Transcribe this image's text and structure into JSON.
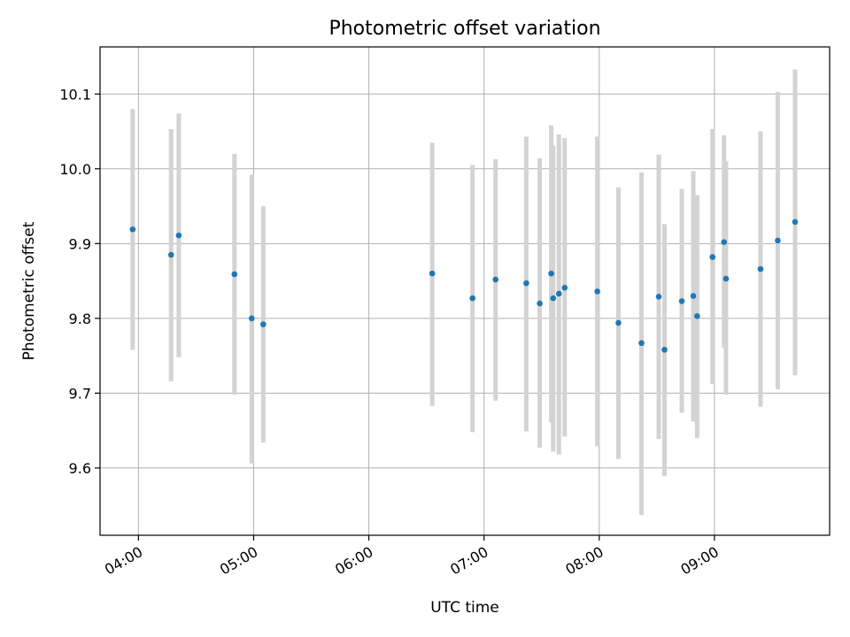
{
  "chart_data": {
    "type": "scatter",
    "title": "Photometric offset variation",
    "xlabel": "UTC time",
    "ylabel": "Photometric offset",
    "x_unit": "UTC time (HH:MM)",
    "xlim": [
      "03:40",
      "10:00"
    ],
    "ylim": [
      9.51,
      10.163
    ],
    "x_ticks": [
      "04:00",
      "05:00",
      "06:00",
      "07:00",
      "08:00",
      "09:00"
    ],
    "y_ticks": [
      9.6,
      9.7,
      9.8,
      9.9,
      10.0,
      10.1
    ],
    "grid": true,
    "colors": {
      "point": "#1f77b4",
      "errorbar": "#d3d3d3",
      "grid": "#b0b0b0"
    },
    "points": [
      {
        "x": "03:57",
        "y": 9.919,
        "ylo": 9.758,
        "yhi": 10.08
      },
      {
        "x": "04:17",
        "y": 9.885,
        "ylo": 9.716,
        "yhi": 10.053
      },
      {
        "x": "04:21",
        "y": 9.911,
        "ylo": 9.748,
        "yhi": 10.074
      },
      {
        "x": "04:50",
        "y": 9.859,
        "ylo": 9.698,
        "yhi": 10.02
      },
      {
        "x": "04:59",
        "y": 9.8,
        "ylo": 9.606,
        "yhi": 9.992
      },
      {
        "x": "05:05",
        "y": 9.792,
        "ylo": 9.634,
        "yhi": 9.95
      },
      {
        "x": "06:33",
        "y": 9.86,
        "ylo": 9.683,
        "yhi": 10.035
      },
      {
        "x": "06:54",
        "y": 9.827,
        "ylo": 9.648,
        "yhi": 10.005
      },
      {
        "x": "07:06",
        "y": 9.852,
        "ylo": 9.69,
        "yhi": 10.013
      },
      {
        "x": "07:22",
        "y": 9.847,
        "ylo": 9.649,
        "yhi": 10.043
      },
      {
        "x": "07:29",
        "y": 9.82,
        "ylo": 9.627,
        "yhi": 10.014
      },
      {
        "x": "07:35",
        "y": 9.86,
        "ylo": 9.661,
        "yhi": 10.058
      },
      {
        "x": "07:36",
        "y": 9.827,
        "ylo": 9.622,
        "yhi": 10.031
      },
      {
        "x": "07:39",
        "y": 9.833,
        "ylo": 9.618,
        "yhi": 10.046
      },
      {
        "x": "07:42",
        "y": 9.841,
        "ylo": 9.642,
        "yhi": 10.041
      },
      {
        "x": "07:59",
        "y": 9.836,
        "ylo": 9.629,
        "yhi": 10.043
      },
      {
        "x": "08:10",
        "y": 9.794,
        "ylo": 9.612,
        "yhi": 9.975
      },
      {
        "x": "08:22",
        "y": 9.767,
        "ylo": 9.537,
        "yhi": 9.995
      },
      {
        "x": "08:31",
        "y": 9.829,
        "ylo": 9.639,
        "yhi": 10.019
      },
      {
        "x": "08:34",
        "y": 9.758,
        "ylo": 9.589,
        "yhi": 9.926
      },
      {
        "x": "08:43",
        "y": 9.823,
        "ylo": 9.674,
        "yhi": 9.973
      },
      {
        "x": "08:49",
        "y": 9.83,
        "ylo": 9.662,
        "yhi": 9.997
      },
      {
        "x": "08:51",
        "y": 9.803,
        "ylo": 9.64,
        "yhi": 9.965
      },
      {
        "x": "08:59",
        "y": 9.882,
        "ylo": 9.712,
        "yhi": 10.053
      },
      {
        "x": "09:05",
        "y": 9.902,
        "ylo": 9.761,
        "yhi": 10.045
      },
      {
        "x": "09:06",
        "y": 9.853,
        "ylo": 9.698,
        "yhi": 10.01
      },
      {
        "x": "09:24",
        "y": 9.866,
        "ylo": 9.682,
        "yhi": 10.05
      },
      {
        "x": "09:33",
        "y": 9.904,
        "ylo": 9.705,
        "yhi": 10.103
      },
      {
        "x": "09:42",
        "y": 9.929,
        "ylo": 9.724,
        "yhi": 10.133
      }
    ]
  }
}
